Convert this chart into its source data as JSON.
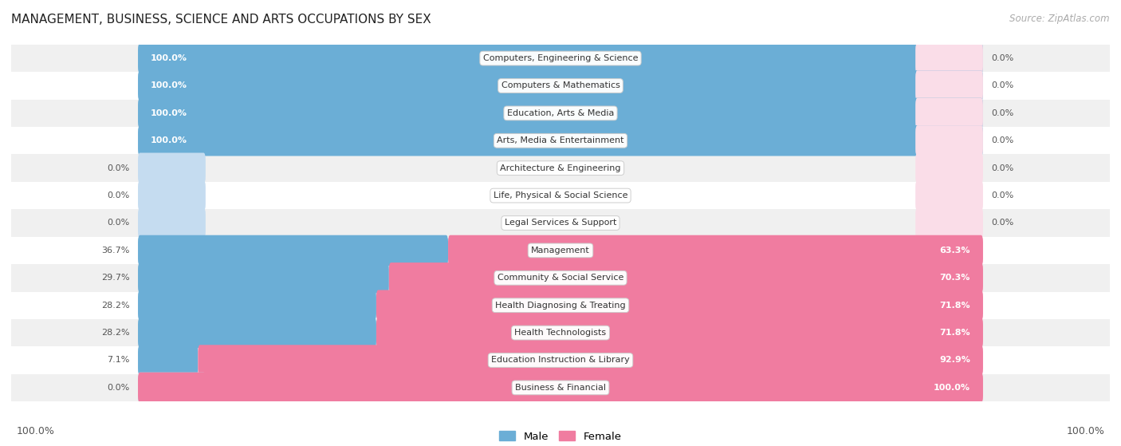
{
  "title": "MANAGEMENT, BUSINESS, SCIENCE AND ARTS OCCUPATIONS BY SEX",
  "source": "Source: ZipAtlas.com",
  "categories": [
    "Computers, Engineering & Science",
    "Computers & Mathematics",
    "Education, Arts & Media",
    "Arts, Media & Entertainment",
    "Architecture & Engineering",
    "Life, Physical & Social Science",
    "Legal Services & Support",
    "Management",
    "Community & Social Service",
    "Health Diagnosing & Treating",
    "Health Technologists",
    "Education Instruction & Library",
    "Business & Financial"
  ],
  "male_pct": [
    100.0,
    100.0,
    100.0,
    100.0,
    0.0,
    0.0,
    0.0,
    36.7,
    29.7,
    28.2,
    28.2,
    7.1,
    0.0
  ],
  "female_pct": [
    0.0,
    0.0,
    0.0,
    0.0,
    0.0,
    0.0,
    0.0,
    63.3,
    70.3,
    71.8,
    71.8,
    92.9,
    100.0
  ],
  "male_color": "#6BAED6",
  "female_color": "#F07CA0",
  "male_stub_color": "#C5DCF0",
  "female_stub_color": "#FADDE8",
  "bg_color": "#ffffff",
  "row_bg_even": "#f0f0f0",
  "row_bg_odd": "#ffffff",
  "legend_male": "Male",
  "legend_female": "Female",
  "xlim_left": -15,
  "xlim_right": 115
}
